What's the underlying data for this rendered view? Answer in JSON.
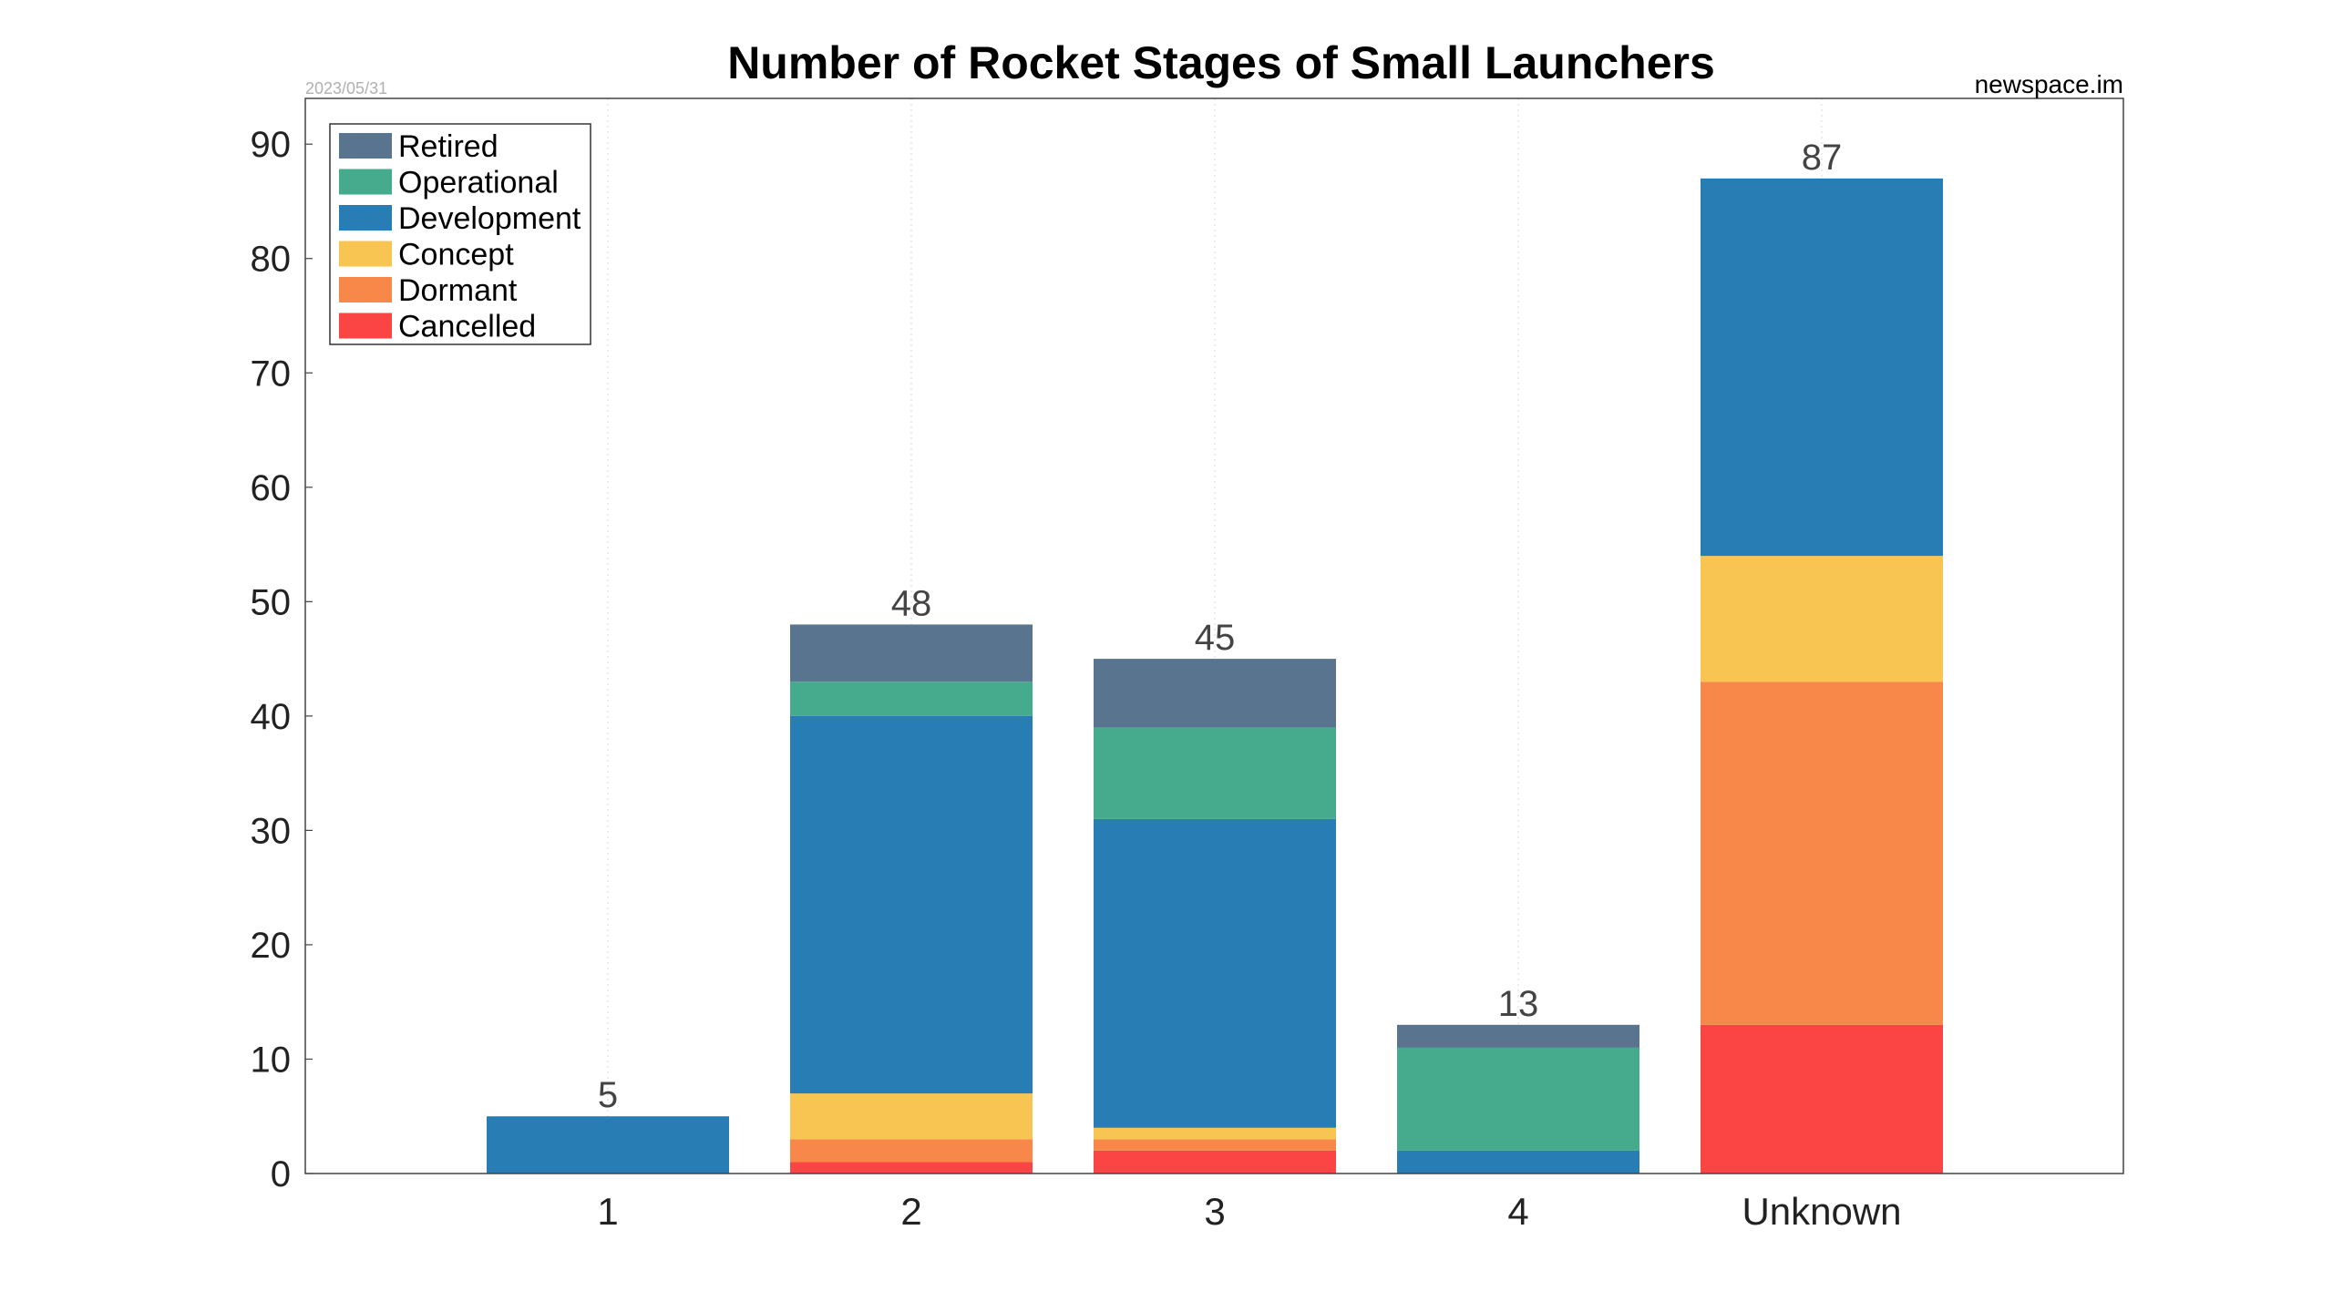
{
  "chart_data": {
    "type": "bar",
    "stacked": true,
    "title": "Number of Rocket Stages of Small Launchers",
    "date_label": "2023/05/31",
    "source_label": "newspace.im",
    "xlabel": "",
    "ylabel": "",
    "categories": [
      "1",
      "2",
      "3",
      "4",
      "Unknown"
    ],
    "ylim": [
      0,
      94
    ],
    "yticks": [
      0,
      10,
      20,
      30,
      40,
      50,
      60,
      70,
      80,
      90
    ],
    "grid": true,
    "legend_position": "top-left",
    "totals": [
      5,
      48,
      45,
      13,
      87
    ],
    "series": [
      {
        "name": "Cancelled",
        "color": "#fb4444",
        "values": [
          0,
          1,
          2,
          0,
          13
        ]
      },
      {
        "name": "Dormant",
        "color": "#f8874a",
        "values": [
          0,
          2,
          1,
          0,
          30
        ]
      },
      {
        "name": "Concept",
        "color": "#f9c552",
        "values": [
          0,
          4,
          1,
          0,
          11
        ]
      },
      {
        "name": "Development",
        "color": "#287db5",
        "values": [
          5,
          33,
          27,
          2,
          33
        ]
      },
      {
        "name": "Operational",
        "color": "#45ab8c",
        "values": [
          0,
          3,
          8,
          9,
          0
        ]
      },
      {
        "name": "Retired",
        "color": "#58748f",
        "values": [
          0,
          5,
          6,
          2,
          0
        ]
      }
    ],
    "legend_order": [
      "Retired",
      "Operational",
      "Development",
      "Concept",
      "Dormant",
      "Cancelled"
    ]
  }
}
